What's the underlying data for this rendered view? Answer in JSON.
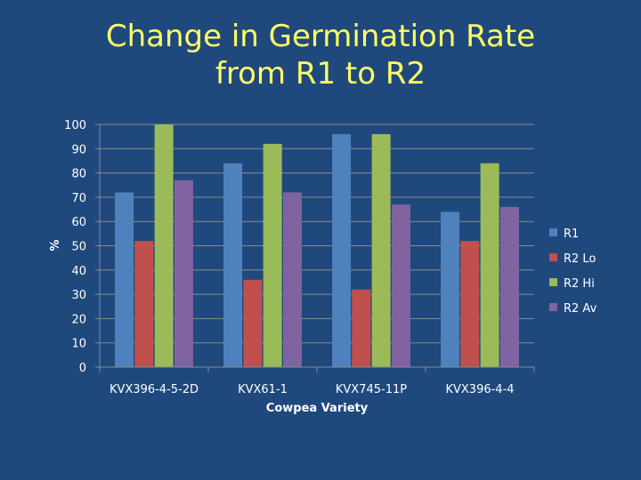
{
  "chart_data": {
    "type": "bar",
    "title_line1": "Change in Germination Rate",
    "title_line2": "from R1 to R2",
    "xlabel": "Cowpea Variety",
    "ylabel": "%",
    "ylim": [
      0,
      100
    ],
    "yticks": [
      0,
      10,
      20,
      30,
      40,
      50,
      60,
      70,
      80,
      90,
      100
    ],
    "grid": true,
    "legend_position": "right",
    "categories": [
      "KVX396-4-5-2D",
      "KVX61-1",
      "KVX745-11P",
      "KVX396-4-4"
    ],
    "series": [
      {
        "name": "R1",
        "color": "#4f81bd",
        "values": [
          72,
          84,
          96,
          64
        ]
      },
      {
        "name": "R2 Lo",
        "color": "#c0504d",
        "values": [
          52,
          36,
          32,
          52
        ]
      },
      {
        "name": "R2 Hi",
        "color": "#9bbb59",
        "values": [
          100,
          92,
          96,
          84
        ]
      },
      {
        "name": "R2 Av",
        "color": "#8064a2",
        "values": [
          77,
          72,
          67,
          66
        ]
      }
    ]
  }
}
